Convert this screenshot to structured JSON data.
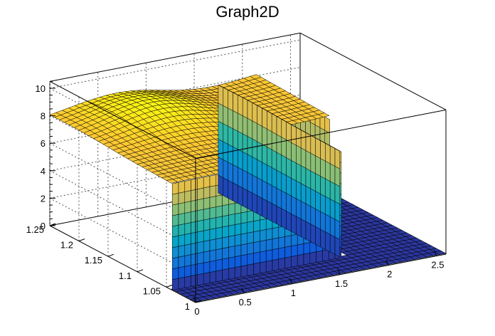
{
  "chart_data": {
    "type": "surface",
    "title": "Graph2D",
    "x_ticks": [
      "0",
      "0.5",
      "1",
      "1.5",
      "2",
      "2.5"
    ],
    "y_ticks": [
      "1",
      "1.05",
      "1.1",
      "1.15",
      "1.2",
      "1.25"
    ],
    "z_ticks": [
      "0",
      "2",
      "4",
      "6",
      "8",
      "10"
    ],
    "xlim": [
      0,
      2.6
    ],
    "ylim": [
      1,
      1.25
    ],
    "zlim": [
      0,
      10.5
    ],
    "grid": true,
    "colormap": [
      "#352a87",
      "#0f5cdd",
      "#1481d6",
      "#06a4ca",
      "#2eb7a4",
      "#87bf77",
      "#d1bb59",
      "#fec832",
      "#f9fb0e"
    ],
    "surface_level": 8,
    "step_edge_x": 1.75,
    "drop_x": 2.1
  }
}
